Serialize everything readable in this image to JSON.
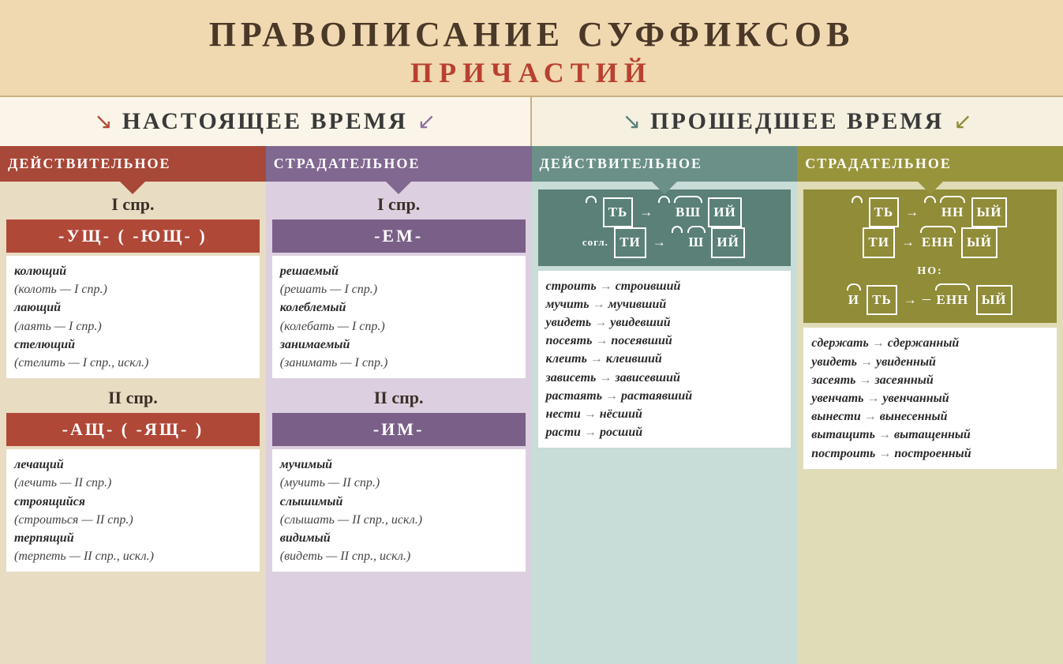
{
  "title": "ПРАВОПИСАНИЕ СУФФИКСОВ",
  "subtitle": "ПРИЧАСТИЙ",
  "tenses": {
    "present": "НАСТОЯЩЕЕ ВРЕМЯ",
    "past": "ПРОШЕДШЕЕ ВРЕМЯ"
  },
  "colors": {
    "col1_header": "#a84838",
    "col1_bg": "#e8dcc3",
    "col2_header": "#806890",
    "col2_bg": "#dcd0e0",
    "col3_header": "#6a9088",
    "col3_bg": "#c8dcd8",
    "col4_header": "#98943c",
    "col4_bg": "#e0dcb8",
    "arrow_present": "#b04838",
    "arrow_past": "#5a8078"
  },
  "columns": {
    "c1": {
      "header": "ДЕЙСТВИТЕЛЬНОЕ",
      "conj1_label": "I спр.",
      "conj1_suffix": "-УЩ- ( -ЮЩ- )",
      "conj1_examples": [
        {
          "word": "колющий",
          "note": "(колоть — I спр.)"
        },
        {
          "word": "лающий",
          "note": "(лаять — I спр.)"
        },
        {
          "word": "стелющий",
          "note": "(стелить — I спр., искл.)"
        }
      ],
      "conj2_label": "II спр.",
      "conj2_suffix": "-АЩ- ( -ЯЩ- )",
      "conj2_examples": [
        {
          "word": "лечащий",
          "note": "(лечить — II спр.)"
        },
        {
          "word": "строящийся",
          "note": "(строиться — II спр.)"
        },
        {
          "word": "терпящий",
          "note": "(терпеть — II спр., искл.)"
        }
      ]
    },
    "c2": {
      "header": "СТРАДАТЕЛЬНОЕ",
      "conj1_label": "I спр.",
      "conj1_suffix": "-ЕМ-",
      "conj1_examples": [
        {
          "word": "решаемый",
          "note": "(решать — I спр.)"
        },
        {
          "word": "колеблемый",
          "note": "(колебать — I спр.)"
        },
        {
          "word": "занимаемый",
          "note": "(занимать — I спр.)"
        }
      ],
      "conj2_label": "II спр.",
      "conj2_suffix": "-ИМ-",
      "conj2_examples": [
        {
          "word": "мучимый",
          "note": "(мучить — II спр.)"
        },
        {
          "word": "слышимый",
          "note": "(слышать — II спр., искл.)"
        },
        {
          "word": "видимый",
          "note": "(видеть — II спр., искл.)"
        }
      ]
    },
    "c3": {
      "header": "ДЕЙСТВИТЕЛЬНОЕ",
      "morph": [
        "⌢ ТЬ → ⌢ ВШ ИЙ",
        "согл. ТИ → ⌢ Ш ИЙ"
      ],
      "examples": [
        {
          "from": "строить",
          "to": "строивший"
        },
        {
          "from": "мучить",
          "to": "мучивший"
        },
        {
          "from": "увидеть",
          "to": "увидевший"
        },
        {
          "from": "посеять",
          "to": "посеявший"
        },
        {
          "from": "клеить",
          "to": "клеивший"
        },
        {
          "from": "зависеть",
          "to": "зависевший"
        },
        {
          "from": "растаять",
          "to": "растаявший"
        },
        {
          "from": "нести",
          "to": "нёсший"
        },
        {
          "from": "расти",
          "to": "росший"
        }
      ]
    },
    "c4": {
      "header": "СТРАДАТЕЛЬНОЕ",
      "morph": [
        "⌢ ТЬ → ⌢ НН ЫЙ",
        "ТИ → ЕНН ЫЙ"
      ],
      "but_label": "НО:",
      "morph_but": "И ТЬ → × ЕНН ЫЙ",
      "examples": [
        {
          "from": "сдержать",
          "to": "сдержанный"
        },
        {
          "from": "увидеть",
          "to": "увиденный"
        },
        {
          "from": "засеять",
          "to": "засеянный"
        },
        {
          "from": "увенчать",
          "to": "увенчанный"
        },
        {
          "from": "вынести",
          "to": "вынесенный"
        },
        {
          "from": "вытащить",
          "to": "вытащенный"
        },
        {
          "from": "построить",
          "to": "построенный"
        }
      ]
    }
  }
}
